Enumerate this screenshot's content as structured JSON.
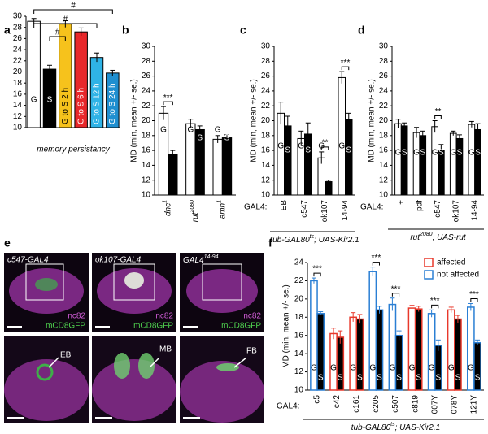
{
  "chart_data": [
    {
      "type": "bar",
      "panel": "a",
      "categories": [
        "G",
        "S",
        "G to S 2 h",
        "G to S 6 h",
        "G to S 12 h",
        "G to S 24 h"
      ],
      "values": [
        29.1,
        20.5,
        28.6,
        27.2,
        22.6,
        19.8
      ],
      "errors": [
        0.5,
        0.7,
        0.6,
        0.7,
        0.8,
        0.5
      ],
      "colors": [
        "#ffffff",
        "#000000",
        "#f6c21c",
        "#e8282b",
        "#2fb3e6",
        "#1f8fd0"
      ],
      "xlabel": "memory persistancy",
      "comparisons": [
        "#",
        "#",
        "#"
      ],
      "ylim": [
        10,
        30
      ],
      "yticks": [
        10,
        12,
        14,
        16,
        18,
        20,
        22,
        24,
        26,
        28,
        30
      ]
    },
    {
      "type": "bar",
      "panel": "b",
      "ylabel": "MD (min, mean +/- se.)",
      "categories": [
        "dnc",
        "rut",
        "amn"
      ],
      "category_superscripts": [
        "1",
        "2080",
        "1"
      ],
      "series": [
        {
          "name": "G",
          "color": "#ffffff",
          "values": [
            21.0,
            19.6,
            17.5
          ],
          "errors": [
            0.9,
            0.6,
            0.5
          ]
        },
        {
          "name": "S",
          "color": "#000000",
          "values": [
            15.5,
            18.8,
            17.7
          ],
          "errors": [
            0.5,
            0.5,
            0.4
          ]
        }
      ],
      "significance": [
        "***",
        null,
        null
      ],
      "ylim": [
        10,
        30
      ],
      "yticks": [
        10,
        12,
        14,
        16,
        18,
        20,
        22,
        24,
        26,
        28,
        30
      ]
    },
    {
      "type": "bar",
      "panel": "c",
      "ylabel": "MD (min, mean +/- se.)",
      "group_label": "GAL4:",
      "categories": [
        "EB",
        "c547",
        "ok107",
        "14-94"
      ],
      "series": [
        {
          "name": "G",
          "color": "#ffffff",
          "values": [
            21.0,
            17.6,
            15.0,
            25.8
          ],
          "errors": [
            1.5,
            1.0,
            0.8,
            0.8
          ]
        },
        {
          "name": "S",
          "color": "#000000",
          "values": [
            19.3,
            18.2,
            11.8,
            20.2
          ],
          "errors": [
            1.3,
            1.5,
            0.2,
            0.8
          ]
        }
      ],
      "significance": [
        null,
        null,
        "**",
        "***"
      ],
      "xlabel": "tub-GAL80",
      "xlabel_superscript": "ts",
      "xlabel_suffix": "; UAS-Kir2.1",
      "ylim": [
        10,
        30
      ],
      "yticks": [
        10,
        12,
        14,
        16,
        18,
        20,
        22,
        24,
        26,
        28,
        30
      ]
    },
    {
      "type": "bar",
      "panel": "d",
      "ylabel": "MD (min, mean +/- se.)",
      "group_label": "GAL4:",
      "categories": [
        "+",
        "pdf",
        "c547",
        "ok107",
        "14-94"
      ],
      "series": [
        {
          "name": "G",
          "color": "#ffffff",
          "values": [
            19.6,
            18.4,
            19.2,
            18.3,
            19.5
          ],
          "errors": [
            0.6,
            0.7,
            0.8,
            0.3,
            0.4
          ]
        },
        {
          "name": "S",
          "color": "#000000",
          "values": [
            19.3,
            18.0,
            16.0,
            17.6,
            18.8
          ],
          "errors": [
            0.4,
            0.6,
            0.8,
            0.5,
            0.8
          ]
        }
      ],
      "significance": [
        null,
        null,
        "**",
        null,
        null
      ],
      "xlabel": "rut",
      "xlabel_superscript": "2080",
      "xlabel_suffix": "; UAS-rut",
      "ylim": [
        10,
        30
      ],
      "yticks": [
        10,
        12,
        14,
        16,
        18,
        20,
        22,
        24,
        26,
        28,
        30
      ]
    },
    {
      "type": "bar",
      "panel": "f",
      "ylabel": "MD (min, mean +/- se.)",
      "group_label": "GAL4:",
      "categories": [
        "c5",
        "c42",
        "c161",
        "c205",
        "c507",
        "c819",
        "007Y",
        "078Y",
        "121Y"
      ],
      "outline_colors": [
        "#2a7fd4",
        "#e8382b",
        "#e8382b",
        "#2a7fd4",
        "#2a7fd4",
        "#e8382b",
        "#2a7fd4",
        "#e8382b",
        "#2a7fd4"
      ],
      "legend": [
        {
          "name": "affected",
          "color": "#e8382b"
        },
        {
          "name": "not affected",
          "color": "#2a7fd4"
        }
      ],
      "series": [
        {
          "name": "G",
          "color": "#ffffff",
          "values": [
            22.0,
            16.2,
            18.0,
            23.0,
            19.4,
            19.0,
            18.4,
            18.8,
            19.1
          ],
          "errors": [
            0.3,
            0.6,
            0.5,
            0.5,
            0.7,
            0.3,
            0.4,
            0.3,
            0.4
          ]
        },
        {
          "name": "S",
          "color": "#000000",
          "values": [
            18.4,
            15.8,
            17.8,
            18.8,
            16.0,
            18.9,
            14.9,
            17.8,
            15.2
          ],
          "errors": [
            0.2,
            0.7,
            0.5,
            0.4,
            0.5,
            0.3,
            0.6,
            0.4,
            0.3
          ]
        }
      ],
      "significance": [
        "***",
        null,
        null,
        "***",
        "***",
        null,
        "***",
        null,
        "***"
      ],
      "xlabel": "tub-GAL80",
      "xlabel_superscript": "ts",
      "xlabel_suffix": "; UAS-Kir2.1",
      "ylim": [
        10,
        24
      ],
      "yticks": [
        10,
        12,
        14,
        16,
        18,
        20,
        22,
        24
      ]
    }
  ],
  "image_panels": {
    "label": "e",
    "panels": [
      {
        "title": "c547-GAL4",
        "stain1": "nc82",
        "stain2": "mCD8GFP",
        "region": "EB"
      },
      {
        "title": "ok107-GAL4",
        "stain1": "nc82",
        "stain2": "mCD8GFP",
        "region": "MB"
      },
      {
        "title": "GAL4",
        "title_superscript": "14-94",
        "stain1": "nc82",
        "stain2": "mCD8GFP",
        "region": "FB"
      }
    ]
  }
}
